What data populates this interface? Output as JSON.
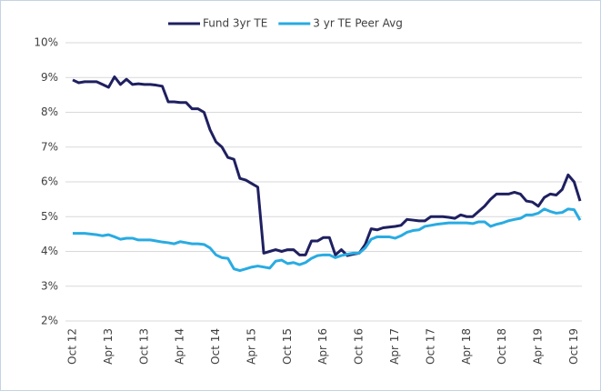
{
  "chart_data": {
    "type": "line",
    "categories": [
      "Oct 12",
      null,
      null,
      null,
      null,
      null,
      "Apr 13",
      null,
      null,
      null,
      null,
      null,
      "Oct 13",
      null,
      null,
      null,
      null,
      null,
      "Apr 14",
      null,
      null,
      null,
      null,
      null,
      "Oct 14",
      null,
      null,
      null,
      null,
      null,
      "Apr 15",
      null,
      null,
      null,
      null,
      null,
      "Oct 15",
      null,
      null,
      null,
      null,
      null,
      "Apr 16",
      null,
      null,
      null,
      null,
      null,
      "Oct 16",
      null,
      null,
      null,
      null,
      null,
      "Apr 17",
      null,
      null,
      null,
      null,
      null,
      "Oct 17",
      null,
      null,
      null,
      null,
      null,
      "Apr 18",
      null,
      null,
      null,
      null,
      null,
      "Oct 18",
      null,
      null,
      null,
      null,
      null,
      "Apr 19",
      null,
      null,
      null,
      null,
      null,
      "Oct 19",
      null
    ],
    "series": [
      {
        "name": "Fund 3yr TE",
        "color": "#1f2060",
        "values": [
          8.93,
          8.85,
          8.88,
          8.88,
          8.88,
          8.8,
          8.72,
          9.02,
          8.8,
          8.95,
          8.8,
          8.82,
          8.8,
          8.8,
          8.78,
          8.75,
          8.3,
          8.3,
          8.28,
          8.28,
          8.1,
          8.1,
          8.0,
          7.5,
          7.15,
          7.0,
          6.7,
          6.65,
          6.1,
          6.05,
          5.95,
          5.85,
          3.95,
          4.0,
          4.05,
          4.0,
          4.05,
          4.05,
          3.9,
          3.9,
          4.3,
          4.3,
          4.4,
          4.4,
          3.9,
          4.05,
          3.88,
          3.92,
          3.95,
          4.2,
          4.65,
          4.62,
          4.68,
          4.7,
          4.72,
          4.75,
          4.92,
          4.9,
          4.88,
          4.88,
          5.0,
          5.0,
          5.0,
          4.98,
          4.95,
          5.05,
          5.0,
          5.0,
          5.15,
          5.3,
          5.5,
          5.65,
          5.65,
          5.65,
          5.7,
          5.65,
          5.45,
          5.42,
          5.3,
          5.55,
          5.65,
          5.62,
          5.78,
          6.2,
          6.0,
          5.45
        ]
      },
      {
        "name": "3 yr TE Peer Avg",
        "color": "#29abe2",
        "values": [
          4.52,
          4.52,
          4.52,
          4.5,
          4.48,
          4.45,
          4.48,
          4.42,
          4.35,
          4.38,
          4.38,
          4.33,
          4.33,
          4.33,
          4.3,
          4.27,
          4.25,
          4.22,
          4.28,
          4.25,
          4.22,
          4.22,
          4.2,
          4.1,
          3.9,
          3.82,
          3.8,
          3.5,
          3.45,
          3.5,
          3.55,
          3.58,
          3.55,
          3.52,
          3.72,
          3.75,
          3.65,
          3.68,
          3.62,
          3.68,
          3.8,
          3.88,
          3.9,
          3.9,
          3.82,
          3.88,
          3.92,
          3.95,
          3.95,
          4.1,
          4.35,
          4.42,
          4.42,
          4.42,
          4.38,
          4.45,
          4.55,
          4.6,
          4.62,
          4.72,
          4.75,
          4.78,
          4.8,
          4.82,
          4.82,
          4.82,
          4.82,
          4.8,
          4.85,
          4.85,
          4.72,
          4.78,
          4.82,
          4.88,
          4.92,
          4.95,
          5.05,
          5.05,
          5.1,
          5.22,
          5.15,
          5.1,
          5.12,
          5.22,
          5.2,
          4.9
        ]
      }
    ],
    "ylim": [
      2,
      10
    ],
    "yticks": [
      {
        "value": 2,
        "label": "2%"
      },
      {
        "value": 3,
        "label": "3%"
      },
      {
        "value": 4,
        "label": "4%"
      },
      {
        "value": 5,
        "label": "5%"
      },
      {
        "value": 6,
        "label": "6%"
      },
      {
        "value": 7,
        "label": "7%"
      },
      {
        "value": 8,
        "label": "8%"
      },
      {
        "value": 9,
        "label": "9%"
      },
      {
        "value": 10,
        "label": "10%"
      }
    ],
    "grid": true,
    "legend": "top"
  }
}
